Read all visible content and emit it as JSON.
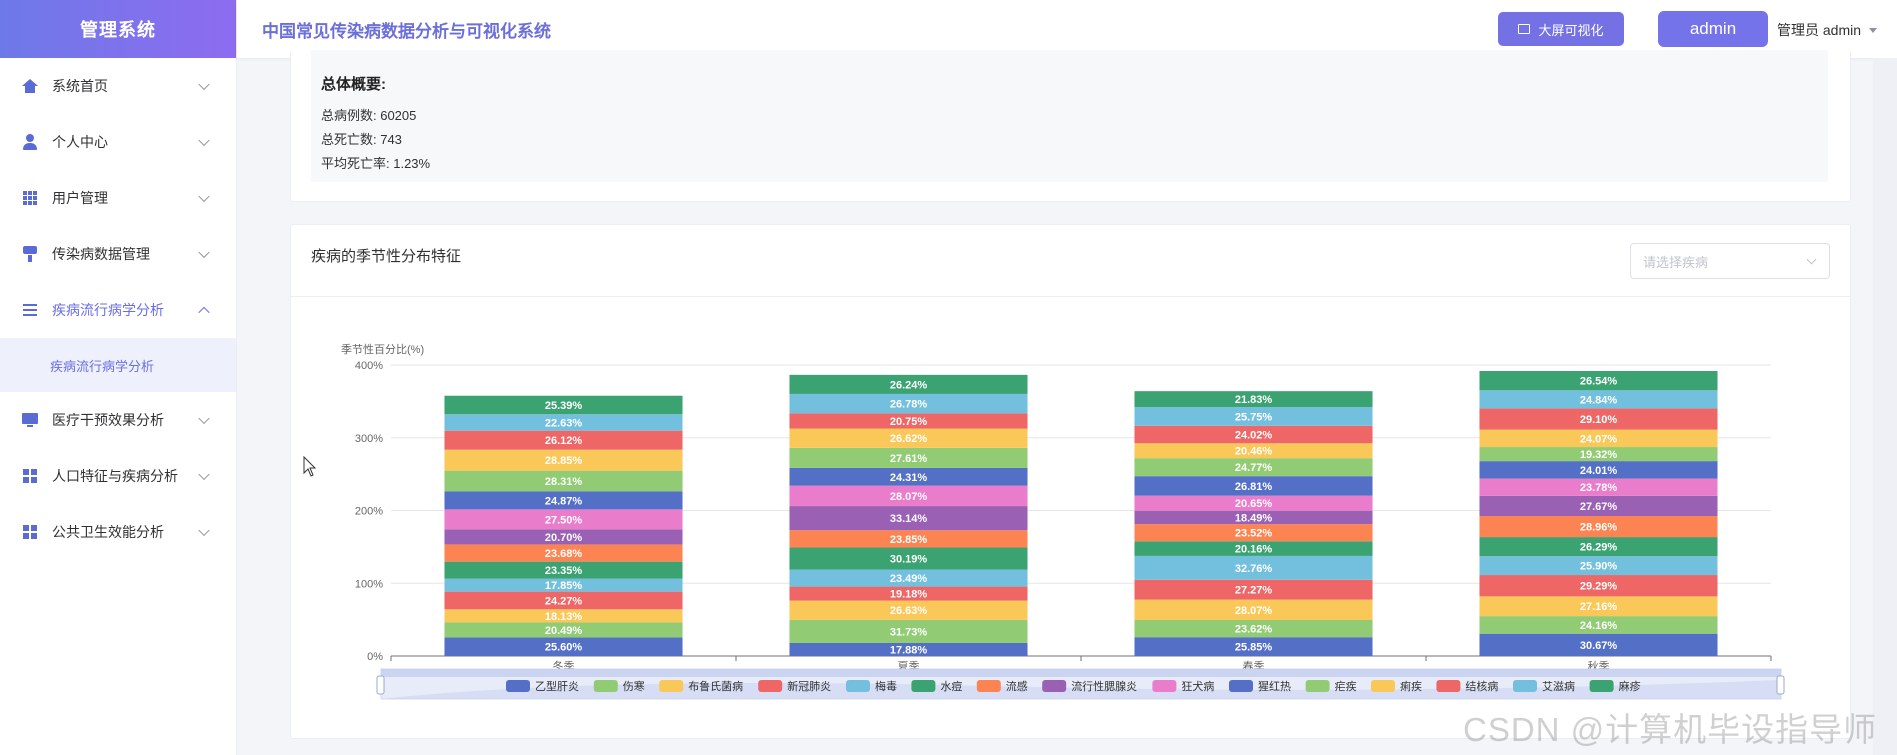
{
  "app": {
    "brand": "管理系统",
    "title": "中国常见传染病数据分析与可视化系统"
  },
  "header": {
    "bigscreen_label": "大屏可视化",
    "admin_label": "admin",
    "user_label": "管理员 admin"
  },
  "sidebar": {
    "items": [
      {
        "label": "系统首页",
        "icon": "home-icon"
      },
      {
        "label": "个人中心",
        "icon": "user-icon"
      },
      {
        "label": "用户管理",
        "icon": "grid-icon"
      },
      {
        "label": "传染病数据管理",
        "icon": "brush-icon"
      },
      {
        "label": "疾病流行病学分析",
        "icon": "list-icon",
        "expanded": true,
        "sub": "疾病流行病学分析"
      },
      {
        "label": "医疗干预效果分析",
        "icon": "monitor-icon"
      },
      {
        "label": "人口特征与疾病分析",
        "icon": "apps-icon"
      },
      {
        "label": "公共卫生效能分析",
        "icon": "apps-icon"
      }
    ]
  },
  "overview": {
    "title": "总体概要:",
    "total_cases": "总病例数: 60205",
    "total_deaths": "总死亡数: 743",
    "avg_fatality": "平均死亡率: 1.23%"
  },
  "chart_card": {
    "title": "疾病的季节性分布特征",
    "select_placeholder": "请选择疾病"
  },
  "chart_data": {
    "type": "bar",
    "stacked": true,
    "ylabel": "季节性百分比(%)",
    "ylim": [
      0,
      400
    ],
    "yticks": [
      "0%",
      "100%",
      "200%",
      "300%",
      "400%"
    ],
    "categories": [
      "冬季",
      "夏季",
      "春季",
      "秋季"
    ],
    "legend_position": "bottom",
    "series": [
      {
        "name": "乙型肝炎",
        "color": "#5470c6",
        "values": [
          25.6,
          17.88,
          25.85,
          30.67
        ]
      },
      {
        "name": "伤寒",
        "color": "#91cc75",
        "values": [
          20.49,
          31.73,
          23.62,
          24.16
        ]
      },
      {
        "name": "布鲁氏菌病",
        "color": "#fac858",
        "values": [
          18.13,
          26.63,
          28.07,
          27.16
        ]
      },
      {
        "name": "新冠肺炎",
        "color": "#ee6666",
        "values": [
          24.27,
          19.18,
          27.27,
          29.29
        ]
      },
      {
        "name": "梅毒",
        "color": "#73c0de",
        "values": [
          17.85,
          23.49,
          32.76,
          25.9
        ]
      },
      {
        "name": "水痘",
        "color": "#3ba272",
        "values": [
          23.35,
          30.19,
          20.16,
          26.29
        ]
      },
      {
        "name": "流感",
        "color": "#fc8452",
        "values": [
          23.68,
          23.85,
          23.52,
          28.96
        ]
      },
      {
        "name": "流行性腮腺炎",
        "color": "#9a60b4",
        "values": [
          20.7,
          33.14,
          18.49,
          27.67
        ]
      },
      {
        "name": "狂犬病",
        "color": "#ea7ccc",
        "values": [
          27.5,
          28.07,
          20.65,
          23.78
        ]
      },
      {
        "name": "猩红热",
        "color": "#5470c6",
        "values": [
          24.87,
          24.31,
          26.81,
          24.01
        ]
      },
      {
        "name": "疟疾",
        "color": "#91cc75",
        "values": [
          28.31,
          27.61,
          24.77,
          19.32
        ]
      },
      {
        "name": "痢疾",
        "color": "#fac858",
        "values": [
          28.85,
          26.62,
          20.46,
          24.07
        ]
      },
      {
        "name": "结核病",
        "color": "#ee6666",
        "values": [
          26.12,
          20.75,
          24.02,
          29.1
        ]
      },
      {
        "name": "艾滋病",
        "color": "#73c0de",
        "values": [
          22.63,
          26.78,
          25.75,
          24.84
        ]
      },
      {
        "name": "麻疹",
        "color": "#3ba272",
        "values": [
          25.39,
          26.24,
          21.83,
          26.54
        ]
      }
    ]
  },
  "watermark": "CSDN @计算机毕设指导师"
}
